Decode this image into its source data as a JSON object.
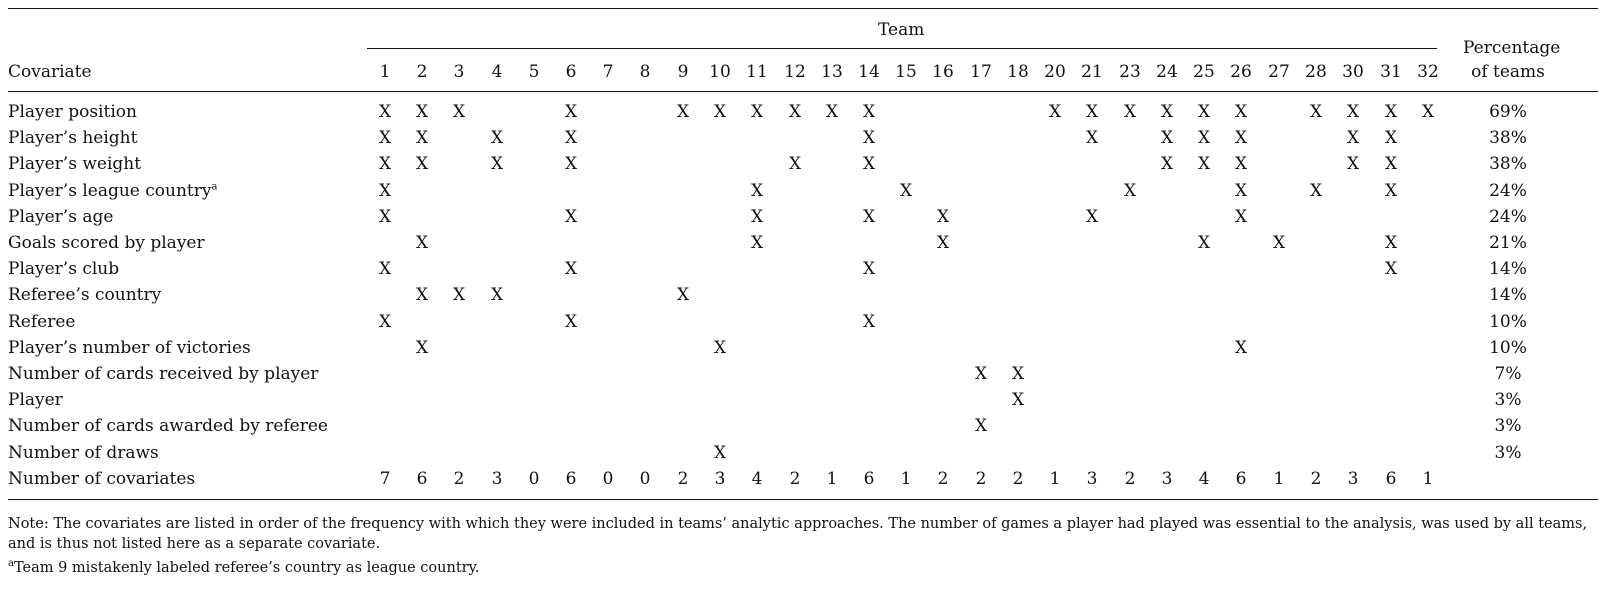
{
  "table": {
    "team_header": "Team",
    "covariate_header": "Covariate",
    "percentage_header_line1": "Percentage",
    "percentage_header_line2": "of teams",
    "teams": [
      "1",
      "2",
      "3",
      "4",
      "5",
      "6",
      "7",
      "8",
      "9",
      "10",
      "11",
      "12",
      "13",
      "14",
      "15",
      "16",
      "17",
      "18",
      "20",
      "21",
      "23",
      "24",
      "25",
      "26",
      "27",
      "28",
      "30",
      "31",
      "32"
    ],
    "rows": [
      {
        "label": "Player position",
        "marks": [
          "1",
          "2",
          "3",
          "6",
          "9",
          "10",
          "11",
          "12",
          "13",
          "14",
          "20",
          "21",
          "23",
          "24",
          "25",
          "26",
          "28",
          "30",
          "31",
          "32"
        ],
        "percentage": "69%"
      },
      {
        "label": "Player’s height",
        "marks": [
          "1",
          "2",
          "4",
          "6",
          "14",
          "21",
          "24",
          "25",
          "26",
          "30",
          "31"
        ],
        "percentage": "38%"
      },
      {
        "label": "Player’s weight",
        "marks": [
          "1",
          "2",
          "4",
          "6",
          "12",
          "14",
          "24",
          "25",
          "26",
          "30",
          "31"
        ],
        "percentage": "38%"
      },
      {
        "label": "Player’s league country",
        "sup": "a",
        "marks": [
          "1",
          "11",
          "15",
          "23",
          "26",
          "28",
          "31"
        ],
        "percentage": "24%"
      },
      {
        "label": "Player’s age",
        "marks": [
          "1",
          "6",
          "11",
          "14",
          "16",
          "21",
          "26"
        ],
        "percentage": "24%"
      },
      {
        "label": "Goals scored by player",
        "marks": [
          "2",
          "11",
          "16",
          "25",
          "27",
          "31"
        ],
        "percentage": "21%"
      },
      {
        "label": "Player’s club",
        "marks": [
          "1",
          "6",
          "14",
          "31"
        ],
        "percentage": "14%"
      },
      {
        "label": "Referee’s country",
        "marks": [
          "2",
          "3",
          "4",
          "9"
        ],
        "percentage": "14%"
      },
      {
        "label": "Referee",
        "marks": [
          "1",
          "6",
          "14"
        ],
        "percentage": "10%"
      },
      {
        "label": "Player’s number of victories",
        "marks": [
          "2",
          "10",
          "26"
        ],
        "percentage": "10%"
      },
      {
        "label": "Number of cards received by player",
        "marks": [
          "17",
          "18"
        ],
        "percentage": "7%"
      },
      {
        "label": "Player",
        "marks": [
          "18"
        ],
        "percentage": "3%"
      },
      {
        "label": "Number of cards awarded by referee",
        "marks": [
          "17"
        ],
        "percentage": "3%"
      },
      {
        "label": "Number of draws",
        "marks": [
          "10"
        ],
        "percentage": "3%"
      }
    ],
    "mark_symbol": "X",
    "totals_label": "Number of covariates",
    "totals": [
      "7",
      "6",
      "2",
      "3",
      "0",
      "6",
      "0",
      "0",
      "2",
      "3",
      "4",
      "2",
      "1",
      "6",
      "1",
      "2",
      "2",
      "2",
      "1",
      "3",
      "2",
      "3",
      "4",
      "6",
      "1",
      "2",
      "3",
      "6",
      "1"
    ]
  },
  "notes": {
    "note": "Note: The covariates are listed in order of the frequency with which they were included in teams’ analytic approaches. The number of games a player had played was essential to the analysis, was used by all teams, and is thus not listed here as a separate covariate.",
    "footnote_marker": "a",
    "footnote": "Team 9 mistakenly labeled referee’s country as league country."
  }
}
